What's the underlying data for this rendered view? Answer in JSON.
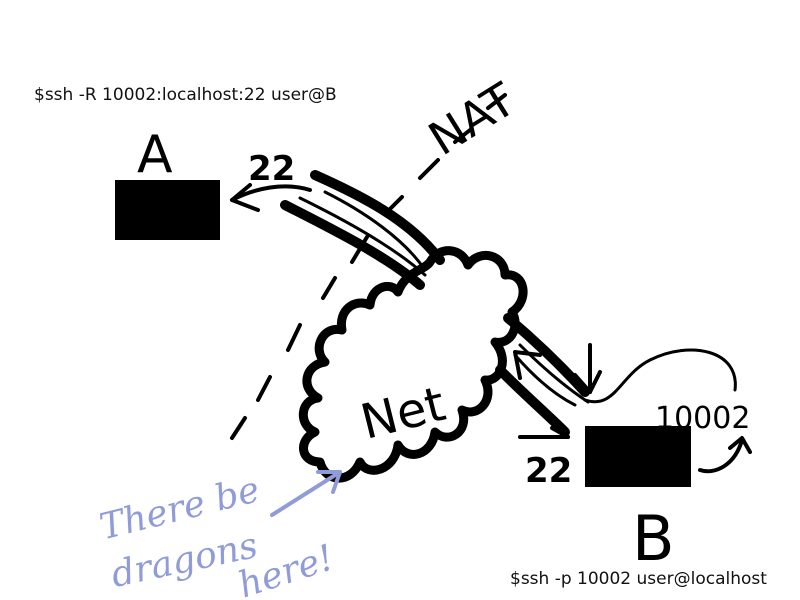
{
  "commands": {
    "host_a": "$ssh -R 10002:localhost:22 user@B",
    "host_b": "$ssh -p 10002 user@localhost"
  },
  "labels": {
    "host_a": "A",
    "host_b": "B",
    "nat": "NAT",
    "net": "Net",
    "port_a": "22",
    "port_b": "22",
    "port_tunnel": "10002",
    "note_line1": "There be",
    "note_line2": "dragons",
    "note_line3": "here!"
  },
  "colors": {
    "ink": "#000000",
    "note": "#8f9cd8",
    "background": "#ffffff"
  }
}
